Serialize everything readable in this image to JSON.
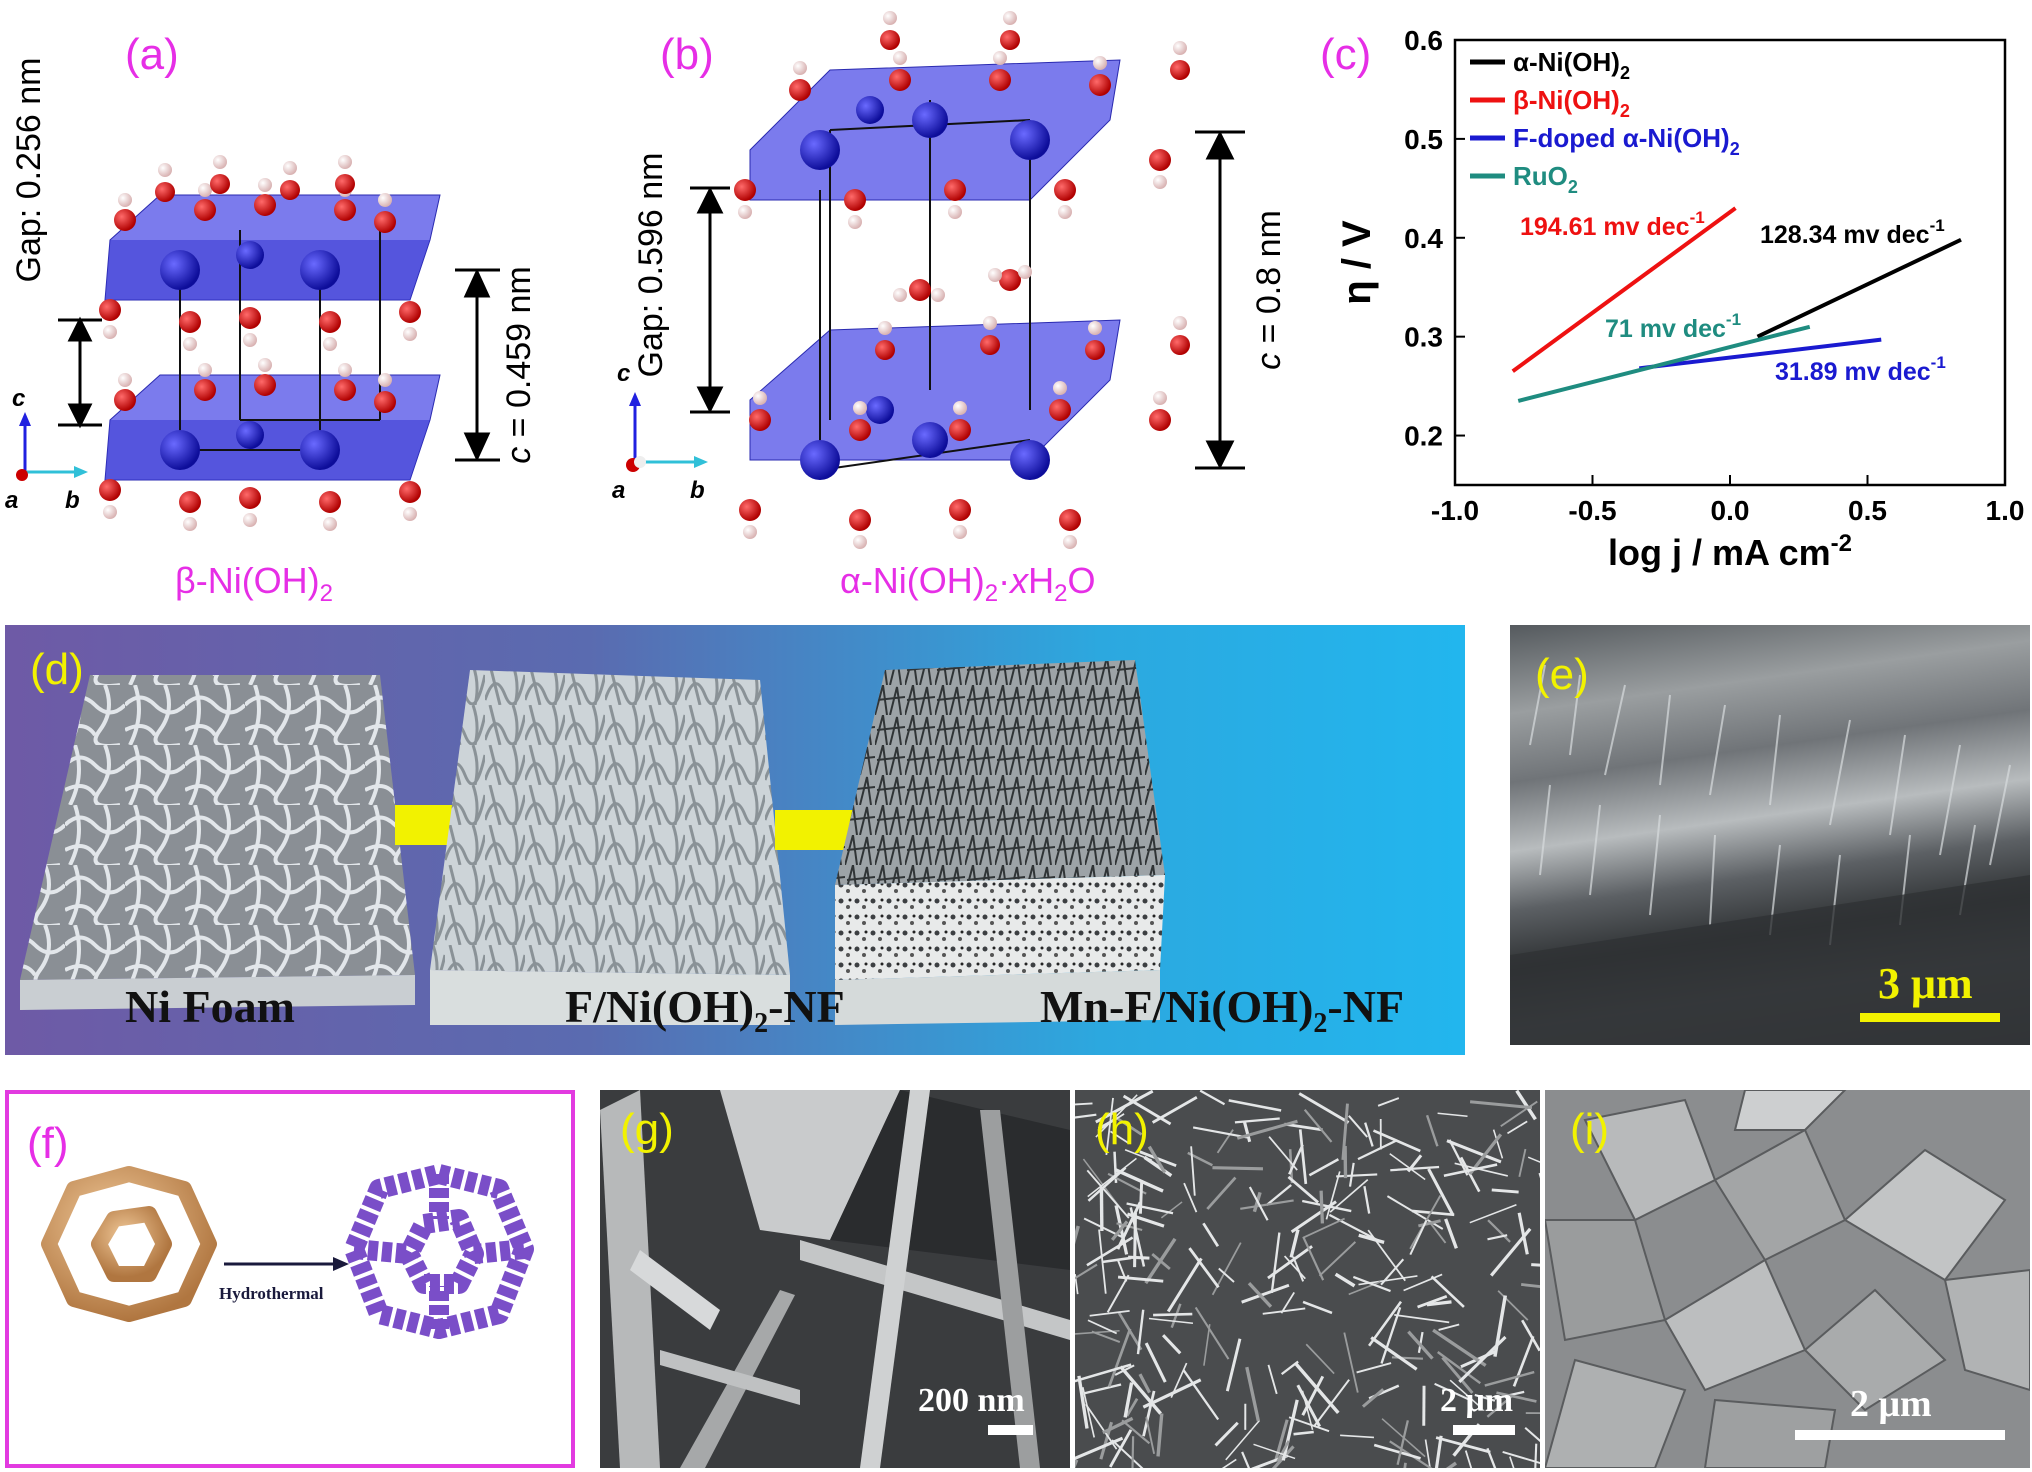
{
  "panels": {
    "a": {
      "label": "(a)",
      "gap": "Gap: 0.256 nm",
      "c_eq": "c",
      "c_val": " = 0.459 nm",
      "caption_main": "β-Ni(OH)",
      "caption_sub": "2",
      "axis_c": "c",
      "axis_a": "a",
      "axis_b": "b"
    },
    "b": {
      "label": "(b)",
      "gap": "Gap: 0.596 nm",
      "c_eq": "c",
      "c_val": " = 0.8 nm",
      "caption_main": "α-Ni(OH)",
      "caption_sub": "2",
      "caption_rest": "·",
      "caption_x": "x",
      "caption_h2o": "H",
      "caption_h2o_sub": "2",
      "caption_o": "O",
      "axis_c": "c",
      "axis_a": "a",
      "axis_b": "b"
    },
    "c": {
      "label": "(c)"
    },
    "d": {
      "label": "(d)",
      "step1": "Ni Foam",
      "step2_a": "F/Ni(OH)",
      "step2_sub": "2",
      "step2_b": "-NF",
      "step3_a": "Mn-F/Ni(OH)",
      "step3_sub": "2",
      "step3_b": "-NF"
    },
    "e": {
      "label": "(e)",
      "scale": "3 μm"
    },
    "f": {
      "label": "(f)",
      "arrow_text": "Hydrothermal"
    },
    "g": {
      "label": "(g)",
      "scale": "200 nm"
    },
    "h": {
      "label": "(h)",
      "scale": "2 μm"
    },
    "i": {
      "label": "(i)",
      "scale": "2 μm"
    }
  },
  "chart_data": {
    "type": "line",
    "xlabel_main": "log j / mA cm",
    "xlabel_sup": "-2",
    "ylabel": "η / V",
    "xlim": [
      -1.0,
      1.0
    ],
    "ylim": [
      0.15,
      0.6
    ],
    "xticks": [
      -1.0,
      -0.5,
      0.0,
      0.5,
      1.0
    ],
    "xtick_labels": [
      "-1.0",
      "-0.5",
      "0.0",
      "0.5",
      "1.0"
    ],
    "yticks": [
      0.2,
      0.3,
      0.4,
      0.5,
      0.6
    ],
    "ytick_labels": [
      "0.2",
      "0.3",
      "0.4",
      "0.5",
      "0.6"
    ],
    "legend_position": "top-left",
    "series": [
      {
        "name": "α-Ni(OH)",
        "name_sub": "2",
        "color": "#000000",
        "x": [
          0.1,
          0.84
        ],
        "y": [
          0.3,
          0.398
        ]
      },
      {
        "name": "β-Ni(OH)",
        "name_sub": "2",
        "color": "#ee1111",
        "x": [
          -0.79,
          0.02
        ],
        "y": [
          0.265,
          0.43
        ]
      },
      {
        "name": "F-doped α-Ni(OH)",
        "name_sub": "2",
        "color": "#1a1ad0",
        "x": [
          -0.33,
          0.55
        ],
        "y": [
          0.268,
          0.297
        ]
      },
      {
        "name": "RuO",
        "name_sub": "2",
        "color": "#1f8c80",
        "x": [
          -0.77,
          0.29
        ],
        "y": [
          0.235,
          0.31
        ]
      }
    ],
    "annotations": [
      {
        "text": "194.61 mv dec",
        "sup": "-1",
        "color": "#ee1111"
      },
      {
        "text": "128.34 mv dec",
        "sup": "-1",
        "color": "#000000"
      },
      {
        "text": "71 mv dec",
        "sup": "-1",
        "color": "#1f8c80"
      },
      {
        "text": "31.89 mv dec",
        "sup": "-1",
        "color": "#1a1ad0"
      }
    ]
  },
  "colors": {
    "label_magenta": "#e62ee6",
    "label_yellow": "#f2f200",
    "frame_magenta": "#e23ae0"
  }
}
